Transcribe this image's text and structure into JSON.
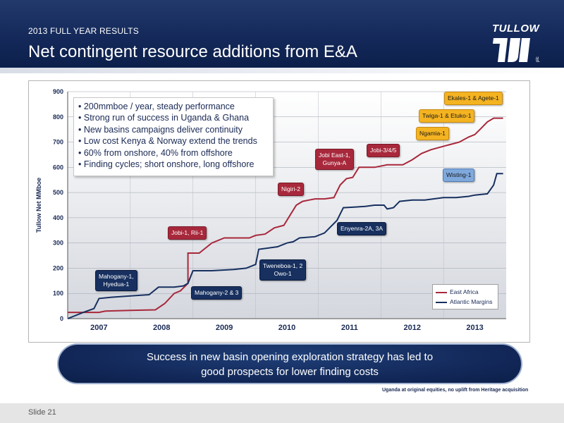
{
  "header": {
    "eyebrow": "2013 FULL YEAR RESULTS",
    "title": "Net contingent resource additions from E&A",
    "logo_text": "TULLOW",
    "logo_sub": "plc"
  },
  "bullets": [
    "200mmboe / year, steady performance",
    "Strong run of success in Uganda & Ghana",
    "New basins campaigns deliver continuity",
    "Low cost Kenya & Norway extend the trends",
    "60% from onshore, 40% from offshore",
    "Finding cycles; short onshore, long offshore"
  ],
  "callouts": {
    "jobi_rii": "Jobi-1, Rii-1",
    "nigiri": "Nigiri-2",
    "jobi_east": "Jobi East-1,\nGunya-A",
    "jobi_345": "Jobi-3/4/5",
    "ngamia": "Ngamia-1",
    "twiga": "Twiga-1 & Etuko-1",
    "ekales": "Ekales-1 & Agete-1",
    "wisting": "Wisting-1",
    "mahogany_hyedua": "Mahogany-1,\nHyedua-1",
    "mahogany_23": "Mahogany-2 & 3",
    "tweneboa": "Tweneboa-1, 2\nOwo-1",
    "enyenra": "Enyenra-2A, 3A"
  },
  "chart_data": {
    "type": "line",
    "title": "",
    "xlabel": "",
    "ylabel": "Tullow Net MMboe",
    "ylim": [
      0,
      900
    ],
    "yticks": [
      "0",
      "100",
      "200",
      "300",
      "400",
      "500",
      "600",
      "700",
      "800",
      "900"
    ],
    "xlim": [
      2006.5,
      2013.5
    ],
    "xticks": [
      "2007",
      "2008",
      "2009",
      "2010",
      "2011",
      "2012",
      "2013"
    ],
    "grid": true,
    "legend_position": "bottom-right",
    "series": [
      {
        "name": "East Africa",
        "color": "#a8283b",
        "points": [
          [
            2006.5,
            25
          ],
          [
            2007.0,
            25
          ],
          [
            2007.1,
            30
          ],
          [
            2007.5,
            33
          ],
          [
            2007.9,
            35
          ],
          [
            2008.05,
            60
          ],
          [
            2008.2,
            100
          ],
          [
            2008.3,
            110
          ],
          [
            2008.42,
            140
          ],
          [
            2008.42,
            260
          ],
          [
            2008.6,
            260
          ],
          [
            2008.8,
            300
          ],
          [
            2009.0,
            320
          ],
          [
            2009.2,
            320
          ],
          [
            2009.4,
            320
          ],
          [
            2009.5,
            330
          ],
          [
            2009.65,
            335
          ],
          [
            2009.8,
            360
          ],
          [
            2009.95,
            370
          ],
          [
            2010.05,
            410
          ],
          [
            2010.15,
            450
          ],
          [
            2010.25,
            465
          ],
          [
            2010.35,
            470
          ],
          [
            2010.45,
            475
          ],
          [
            2010.6,
            475
          ],
          [
            2010.75,
            480
          ],
          [
            2010.85,
            530
          ],
          [
            2010.95,
            555
          ],
          [
            2011.05,
            560
          ],
          [
            2011.15,
            600
          ],
          [
            2011.4,
            600
          ],
          [
            2011.6,
            610
          ],
          [
            2011.85,
            610
          ],
          [
            2012.0,
            630
          ],
          [
            2012.15,
            655
          ],
          [
            2012.3,
            670
          ],
          [
            2012.45,
            680
          ],
          [
            2012.6,
            690
          ],
          [
            2012.75,
            700
          ],
          [
            2012.9,
            720
          ],
          [
            2013.0,
            730
          ],
          [
            2013.1,
            755
          ],
          [
            2013.2,
            780
          ],
          [
            2013.3,
            795
          ],
          [
            2013.45,
            795
          ]
        ]
      },
      {
        "name": "Atlantic Margins",
        "color": "#17305f",
        "points": [
          [
            2006.5,
            0
          ],
          [
            2006.75,
            25
          ],
          [
            2006.92,
            40
          ],
          [
            2007.0,
            80
          ],
          [
            2007.2,
            85
          ],
          [
            2007.5,
            90
          ],
          [
            2007.8,
            95
          ],
          [
            2007.95,
            125
          ],
          [
            2008.2,
            125
          ],
          [
            2008.35,
            130
          ],
          [
            2008.42,
            140
          ],
          [
            2008.5,
            190
          ],
          [
            2008.8,
            190
          ],
          [
            2009.15,
            195
          ],
          [
            2009.35,
            200
          ],
          [
            2009.5,
            215
          ],
          [
            2009.55,
            275
          ],
          [
            2009.85,
            285
          ],
          [
            2010.0,
            300
          ],
          [
            2010.1,
            305
          ],
          [
            2010.2,
            320
          ],
          [
            2010.45,
            325
          ],
          [
            2010.6,
            340
          ],
          [
            2010.8,
            390
          ],
          [
            2010.9,
            440
          ],
          [
            2011.25,
            445
          ],
          [
            2011.4,
            450
          ],
          [
            2011.55,
            450
          ],
          [
            2011.6,
            435
          ],
          [
            2011.7,
            440
          ],
          [
            2011.8,
            465
          ],
          [
            2012.0,
            470
          ],
          [
            2012.2,
            470
          ],
          [
            2012.5,
            480
          ],
          [
            2012.7,
            480
          ],
          [
            2012.9,
            485
          ],
          [
            2013.0,
            490
          ],
          [
            2013.2,
            495
          ],
          [
            2013.3,
            530
          ],
          [
            2013.35,
            575
          ],
          [
            2013.45,
            575
          ]
        ]
      }
    ]
  },
  "banner": {
    "line1": "Success in new basin opening exploration strategy has led to",
    "line2": "good prospects for lower finding costs"
  },
  "footnote": "Uganda at original equities, no uplift from Heritage acquisition",
  "footer": {
    "slide_label": "Slide 21"
  }
}
